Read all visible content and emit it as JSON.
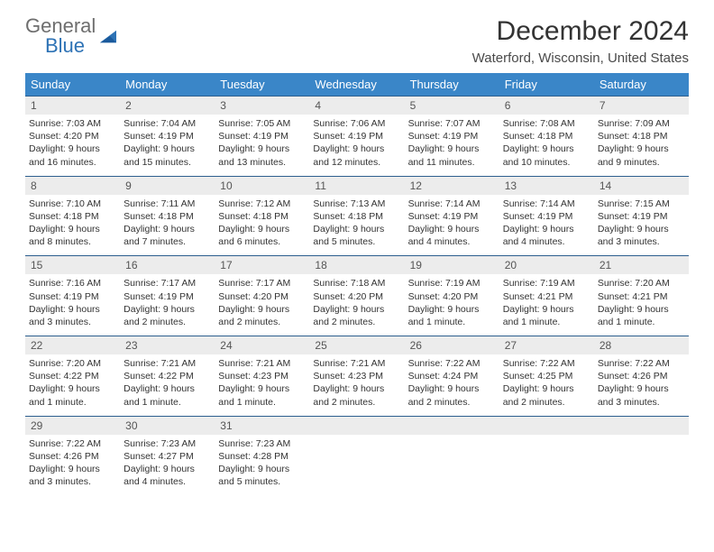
{
  "brand": {
    "part1": "General",
    "part2": "Blue"
  },
  "title": "December 2024",
  "location": "Waterford, Wisconsin, United States",
  "header_bg": "#3a86c8",
  "daynum_bg": "#ececec",
  "border_color": "#2d5f8f",
  "days": [
    "Sunday",
    "Monday",
    "Tuesday",
    "Wednesday",
    "Thursday",
    "Friday",
    "Saturday"
  ],
  "weeks": [
    [
      {
        "n": "1",
        "sr": "Sunrise: 7:03 AM",
        "ss": "Sunset: 4:20 PM",
        "d1": "Daylight: 9 hours",
        "d2": "and 16 minutes."
      },
      {
        "n": "2",
        "sr": "Sunrise: 7:04 AM",
        "ss": "Sunset: 4:19 PM",
        "d1": "Daylight: 9 hours",
        "d2": "and 15 minutes."
      },
      {
        "n": "3",
        "sr": "Sunrise: 7:05 AM",
        "ss": "Sunset: 4:19 PM",
        "d1": "Daylight: 9 hours",
        "d2": "and 13 minutes."
      },
      {
        "n": "4",
        "sr": "Sunrise: 7:06 AM",
        "ss": "Sunset: 4:19 PM",
        "d1": "Daylight: 9 hours",
        "d2": "and 12 minutes."
      },
      {
        "n": "5",
        "sr": "Sunrise: 7:07 AM",
        "ss": "Sunset: 4:19 PM",
        "d1": "Daylight: 9 hours",
        "d2": "and 11 minutes."
      },
      {
        "n": "6",
        "sr": "Sunrise: 7:08 AM",
        "ss": "Sunset: 4:18 PM",
        "d1": "Daylight: 9 hours",
        "d2": "and 10 minutes."
      },
      {
        "n": "7",
        "sr": "Sunrise: 7:09 AM",
        "ss": "Sunset: 4:18 PM",
        "d1": "Daylight: 9 hours",
        "d2": "and 9 minutes."
      }
    ],
    [
      {
        "n": "8",
        "sr": "Sunrise: 7:10 AM",
        "ss": "Sunset: 4:18 PM",
        "d1": "Daylight: 9 hours",
        "d2": "and 8 minutes."
      },
      {
        "n": "9",
        "sr": "Sunrise: 7:11 AM",
        "ss": "Sunset: 4:18 PM",
        "d1": "Daylight: 9 hours",
        "d2": "and 7 minutes."
      },
      {
        "n": "10",
        "sr": "Sunrise: 7:12 AM",
        "ss": "Sunset: 4:18 PM",
        "d1": "Daylight: 9 hours",
        "d2": "and 6 minutes."
      },
      {
        "n": "11",
        "sr": "Sunrise: 7:13 AM",
        "ss": "Sunset: 4:18 PM",
        "d1": "Daylight: 9 hours",
        "d2": "and 5 minutes."
      },
      {
        "n": "12",
        "sr": "Sunrise: 7:14 AM",
        "ss": "Sunset: 4:19 PM",
        "d1": "Daylight: 9 hours",
        "d2": "and 4 minutes."
      },
      {
        "n": "13",
        "sr": "Sunrise: 7:14 AM",
        "ss": "Sunset: 4:19 PM",
        "d1": "Daylight: 9 hours",
        "d2": "and 4 minutes."
      },
      {
        "n": "14",
        "sr": "Sunrise: 7:15 AM",
        "ss": "Sunset: 4:19 PM",
        "d1": "Daylight: 9 hours",
        "d2": "and 3 minutes."
      }
    ],
    [
      {
        "n": "15",
        "sr": "Sunrise: 7:16 AM",
        "ss": "Sunset: 4:19 PM",
        "d1": "Daylight: 9 hours",
        "d2": "and 3 minutes."
      },
      {
        "n": "16",
        "sr": "Sunrise: 7:17 AM",
        "ss": "Sunset: 4:19 PM",
        "d1": "Daylight: 9 hours",
        "d2": "and 2 minutes."
      },
      {
        "n": "17",
        "sr": "Sunrise: 7:17 AM",
        "ss": "Sunset: 4:20 PM",
        "d1": "Daylight: 9 hours",
        "d2": "and 2 minutes."
      },
      {
        "n": "18",
        "sr": "Sunrise: 7:18 AM",
        "ss": "Sunset: 4:20 PM",
        "d1": "Daylight: 9 hours",
        "d2": "and 2 minutes."
      },
      {
        "n": "19",
        "sr": "Sunrise: 7:19 AM",
        "ss": "Sunset: 4:20 PM",
        "d1": "Daylight: 9 hours",
        "d2": "and 1 minute."
      },
      {
        "n": "20",
        "sr": "Sunrise: 7:19 AM",
        "ss": "Sunset: 4:21 PM",
        "d1": "Daylight: 9 hours",
        "d2": "and 1 minute."
      },
      {
        "n": "21",
        "sr": "Sunrise: 7:20 AM",
        "ss": "Sunset: 4:21 PM",
        "d1": "Daylight: 9 hours",
        "d2": "and 1 minute."
      }
    ],
    [
      {
        "n": "22",
        "sr": "Sunrise: 7:20 AM",
        "ss": "Sunset: 4:22 PM",
        "d1": "Daylight: 9 hours",
        "d2": "and 1 minute."
      },
      {
        "n": "23",
        "sr": "Sunrise: 7:21 AM",
        "ss": "Sunset: 4:22 PM",
        "d1": "Daylight: 9 hours",
        "d2": "and 1 minute."
      },
      {
        "n": "24",
        "sr": "Sunrise: 7:21 AM",
        "ss": "Sunset: 4:23 PM",
        "d1": "Daylight: 9 hours",
        "d2": "and 1 minute."
      },
      {
        "n": "25",
        "sr": "Sunrise: 7:21 AM",
        "ss": "Sunset: 4:23 PM",
        "d1": "Daylight: 9 hours",
        "d2": "and 2 minutes."
      },
      {
        "n": "26",
        "sr": "Sunrise: 7:22 AM",
        "ss": "Sunset: 4:24 PM",
        "d1": "Daylight: 9 hours",
        "d2": "and 2 minutes."
      },
      {
        "n": "27",
        "sr": "Sunrise: 7:22 AM",
        "ss": "Sunset: 4:25 PM",
        "d1": "Daylight: 9 hours",
        "d2": "and 2 minutes."
      },
      {
        "n": "28",
        "sr": "Sunrise: 7:22 AM",
        "ss": "Sunset: 4:26 PM",
        "d1": "Daylight: 9 hours",
        "d2": "and 3 minutes."
      }
    ],
    [
      {
        "n": "29",
        "sr": "Sunrise: 7:22 AM",
        "ss": "Sunset: 4:26 PM",
        "d1": "Daylight: 9 hours",
        "d2": "and 3 minutes."
      },
      {
        "n": "30",
        "sr": "Sunrise: 7:23 AM",
        "ss": "Sunset: 4:27 PM",
        "d1": "Daylight: 9 hours",
        "d2": "and 4 minutes."
      },
      {
        "n": "31",
        "sr": "Sunrise: 7:23 AM",
        "ss": "Sunset: 4:28 PM",
        "d1": "Daylight: 9 hours",
        "d2": "and 5 minutes."
      },
      null,
      null,
      null,
      null
    ]
  ]
}
